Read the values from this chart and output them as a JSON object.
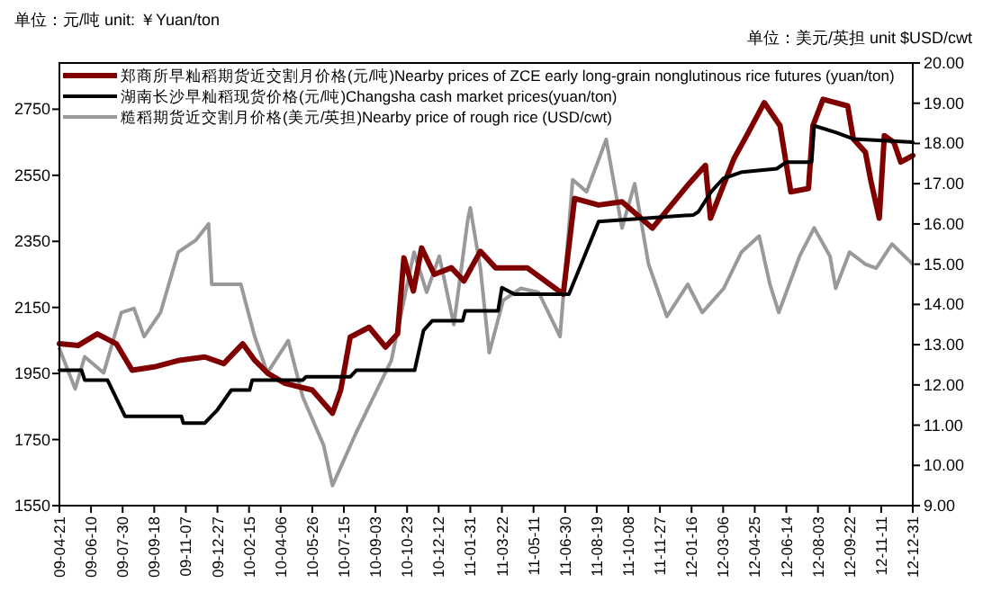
{
  "chart_data": {
    "type": "line",
    "ylabel": "单位：元/吨    unit: ￥Yuan/ton",
    "y2label": "单位：美元/英担    unit $USD/cwt",
    "legend": "top left",
    "xlim": [
      "2009-04-21",
      "2012-12-31"
    ],
    "xticks": [
      {
        "value": "2009-04-21",
        "label": "09-04-21"
      },
      {
        "value": "2009-06-10",
        "label": "09-06-10"
      },
      {
        "value": "2009-07-30",
        "label": "09-07-30"
      },
      {
        "value": "2009-09-18",
        "label": "09-09-18"
      },
      {
        "value": "2009-11-07",
        "label": "09-11-07"
      },
      {
        "value": "2009-12-27",
        "label": "09-12-27"
      },
      {
        "value": "2010-02-15",
        "label": "10-02-15"
      },
      {
        "value": "2010-04-06",
        "label": "10-04-06"
      },
      {
        "value": "2010-05-26",
        "label": "10-05-26"
      },
      {
        "value": "2010-07-15",
        "label": "10-07-15"
      },
      {
        "value": "2010-09-03",
        "label": "10-09-03"
      },
      {
        "value": "2010-10-23",
        "label": "10-10-23"
      },
      {
        "value": "2010-12-12",
        "label": "10-12-12"
      },
      {
        "value": "2011-01-31",
        "label": "11-01-31"
      },
      {
        "value": "2011-03-22",
        "label": "11-03-22"
      },
      {
        "value": "2011-05-11",
        "label": "11-05-11"
      },
      {
        "value": "2011-06-30",
        "label": "11-06-30"
      },
      {
        "value": "2011-08-19",
        "label": "11-08-19"
      },
      {
        "value": "2011-10-08",
        "label": "11-10-08"
      },
      {
        "value": "2011-11-27",
        "label": "11-11-27"
      },
      {
        "value": "2012-01-16",
        "label": "12-01-16"
      },
      {
        "value": "2012-03-06",
        "label": "12-03-06"
      },
      {
        "value": "2012-04-25",
        "label": "12-04-25"
      },
      {
        "value": "2012-06-14",
        "label": "12-06-14"
      },
      {
        "value": "2012-08-03",
        "label": "12-08-03"
      },
      {
        "value": "2012-09-22",
        "label": "12-09-22"
      },
      {
        "value": "2012-11-11",
        "label": "12-11-11"
      },
      {
        "value": "2012-12-31",
        "label": "12-12-31"
      }
    ],
    "ylim": [
      1550,
      2890
    ],
    "yticks": [
      1550,
      1750,
      1950,
      2150,
      2350,
      2550,
      2750
    ],
    "y2lim": [
      9,
      20
    ],
    "y2ticks": [
      {
        "value": 9,
        "label": "9.00"
      },
      {
        "value": 10,
        "label": "10.00"
      },
      {
        "value": 11,
        "label": "11.00"
      },
      {
        "value": 12,
        "label": "12.00"
      },
      {
        "value": 13,
        "label": "13.00"
      },
      {
        "value": 14,
        "label": "14.00"
      },
      {
        "value": 15,
        "label": "15.00"
      },
      {
        "value": 16,
        "label": "16.00"
      },
      {
        "value": 17,
        "label": "17.00"
      },
      {
        "value": 18,
        "label": "18.00"
      },
      {
        "value": 19,
        "label": "19.00"
      },
      {
        "value": 20,
        "label": "20.00"
      }
    ],
    "series": [
      {
        "name": "郑商所早籼稻期货近交割月价格(元/吨)Nearby prices of ZCE early long-grain nonglutinous rice futures (yuan/ton)",
        "color": "#800000",
        "x": [
          "2009-04-21",
          "2009-05-21",
          "2009-06-20",
          "2009-07-20",
          "2009-08-14",
          "2009-09-18",
          "2009-10-28",
          "2009-12-07",
          "2010-01-06",
          "2010-02-05",
          "2010-02-24",
          "2010-03-17",
          "2010-04-13",
          "2010-05-26",
          "2010-06-27",
          "2010-07-10",
          "2010-07-25",
          "2010-08-24",
          "2010-09-19",
          "2010-10-08",
          "2010-10-18",
          "2010-11-02",
          "2010-11-15",
          "2010-12-05",
          "2011-01-01",
          "2011-01-21",
          "2011-02-16",
          "2011-03-12",
          "2011-05-01",
          "2011-06-27",
          "2011-07-15",
          "2011-08-22",
          "2011-09-28",
          "2011-11-15",
          "2012-01-10",
          "2012-02-07",
          "2012-02-15",
          "2012-03-23",
          "2012-04-15",
          "2012-05-10",
          "2012-06-04",
          "2012-06-21",
          "2012-07-19",
          "2012-07-26",
          "2012-08-11",
          "2012-09-19",
          "2012-09-28",
          "2012-10-17",
          "2012-10-26",
          "2012-11-08",
          "2012-11-16",
          "2012-12-01",
          "2012-12-12",
          "2012-12-31"
        ],
        "values": [
          2040,
          2035,
          2070,
          2040,
          1960,
          1970,
          1990,
          2000,
          1980,
          2040,
          1990,
          1950,
          1920,
          1900,
          1830,
          1900,
          2060,
          2090,
          2030,
          2070,
          2300,
          2200,
          2330,
          2250,
          2270,
          2230,
          2320,
          2270,
          2270,
          2190,
          2480,
          2460,
          2470,
          2390,
          2520,
          2580,
          2420,
          2600,
          2680,
          2770,
          2700,
          2500,
          2510,
          2700,
          2780,
          2760,
          2660,
          2620,
          2530,
          2420,
          2670,
          2650,
          2590,
          2610
        ]
      },
      {
        "name": "湖南长沙早籼稻现货价格(元/吨)Changsha cash market prices(yuan/ton)",
        "color": "#000000",
        "x": [
          "2009-04-21",
          "2009-05-26",
          "2009-05-31",
          "2009-07-06",
          "2009-08-03",
          "2009-10-31",
          "2009-11-03",
          "2009-12-07",
          "2009-12-27",
          "2010-01-18",
          "2010-02-16",
          "2010-02-20",
          "2010-05-11",
          "2010-05-16",
          "2010-07-25",
          "2010-08-04",
          "2010-11-04",
          "2010-11-18",
          "2010-12-02",
          "2011-01-19",
          "2011-01-23",
          "2011-03-16",
          "2011-03-22",
          "2011-04-11",
          "2011-07-06",
          "2011-08-22",
          "2012-01-19",
          "2012-01-27",
          "2012-02-16",
          "2012-03-06",
          "2012-04-05",
          "2012-05-30",
          "2012-06-14",
          "2012-07-24",
          "2012-07-28",
          "2012-08-31",
          "2012-09-28",
          "2012-12-31"
        ],
        "values": [
          1960,
          1960,
          1930,
          1930,
          1820,
          1820,
          1800,
          1800,
          1840,
          1900,
          1900,
          1930,
          1930,
          1940,
          1940,
          1960,
          1960,
          2080,
          2110,
          2110,
          2140,
          2140,
          2210,
          2190,
          2190,
          2410,
          2430,
          2440,
          2500,
          2540,
          2560,
          2570,
          2590,
          2590,
          2700,
          2680,
          2660,
          2650
        ]
      },
      {
        "name": "糙稻期货近交割月价格(美元/英担)Nearby price of rough rice (USD/cwt)",
        "color": "#999999",
        "axis": "y2",
        "x": [
          "2009-04-21",
          "2009-05-16",
          "2009-05-31",
          "2009-06-30",
          "2009-07-28",
          "2009-08-17",
          "2009-09-02",
          "2009-09-28",
          "2009-10-26",
          "2009-11-23",
          "2009-12-13",
          "2009-12-18",
          "2010-01-10",
          "2010-02-02",
          "2010-02-24",
          "2010-03-16",
          "2010-04-18",
          "2010-05-11",
          "2010-06-13",
          "2010-06-27",
          "2010-08-03",
          "2010-08-31",
          "2010-09-28",
          "2010-10-26",
          "2010-11-03",
          "2010-11-23",
          "2010-12-13",
          "2011-01-05",
          "2011-01-27",
          "2011-01-31",
          "2011-02-16",
          "2011-03-02",
          "2011-03-24",
          "2011-04-21",
          "2011-05-19",
          "2011-06-22",
          "2011-07-12",
          "2011-08-03",
          "2011-09-03",
          "2011-09-28",
          "2011-10-18",
          "2011-11-09",
          "2011-12-08",
          "2012-01-10",
          "2012-02-02",
          "2012-03-07",
          "2012-04-04",
          "2012-05-02",
          "2012-05-19",
          "2012-06-02",
          "2012-07-05",
          "2012-07-28",
          "2012-08-22",
          "2012-08-31",
          "2012-09-22",
          "2012-10-17",
          "2012-11-03",
          "2012-11-28",
          "2012-12-31"
        ],
        "values": [
          12.9,
          11.9,
          12.7,
          12.3,
          13.8,
          13.9,
          13.2,
          13.8,
          15.3,
          15.6,
          16.0,
          14.5,
          14.5,
          14.5,
          13.2,
          12.3,
          13.1,
          11.7,
          10.5,
          9.5,
          10.8,
          11.7,
          12.6,
          14.7,
          15.3,
          14.3,
          15.2,
          13.5,
          16.1,
          16.4,
          14.9,
          12.8,
          14.1,
          14.4,
          14.3,
          13.2,
          17.1,
          16.8,
          18.1,
          15.9,
          17.0,
          15.0,
          13.7,
          14.5,
          13.8,
          14.4,
          15.3,
          15.7,
          14.5,
          13.8,
          15.2,
          15.9,
          15.2,
          14.4,
          15.3,
          15.0,
          14.9,
          15.5,
          15.0
        ]
      }
    ]
  }
}
